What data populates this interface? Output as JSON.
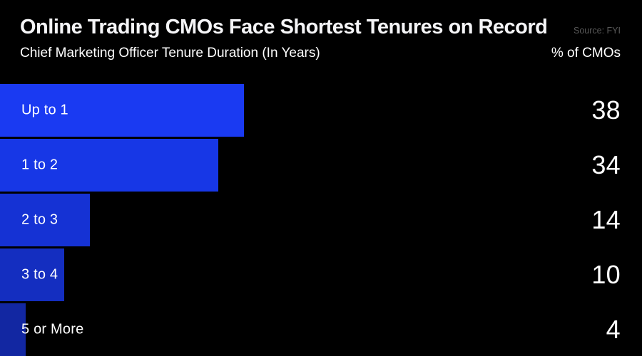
{
  "chart_data": {
    "type": "bar",
    "orientation": "horizontal",
    "title": "Online Trading CMOs Face Shortest Tenures on Record",
    "subtitle": "Chief Marketing Officer Tenure Duration (In Years)",
    "value_axis_label": "% of CMOs",
    "source": "Source: FYI",
    "categories": [
      "Up to 1",
      "1 to 2",
      "2 to 3",
      "3 to 4",
      "5 or More"
    ],
    "values": [
      38,
      34,
      14,
      10,
      4
    ],
    "xlim": [
      0,
      100
    ],
    "grid": false,
    "legend": false,
    "bar_colors": [
      "#1a3af2",
      "#1737e6",
      "#1532d4",
      "#142ec0",
      "#1227a2"
    ],
    "colors": {
      "background": "#000000",
      "title_text": "#f5f5f7",
      "body_text": "#ffffff",
      "source_text": "#595959"
    }
  }
}
